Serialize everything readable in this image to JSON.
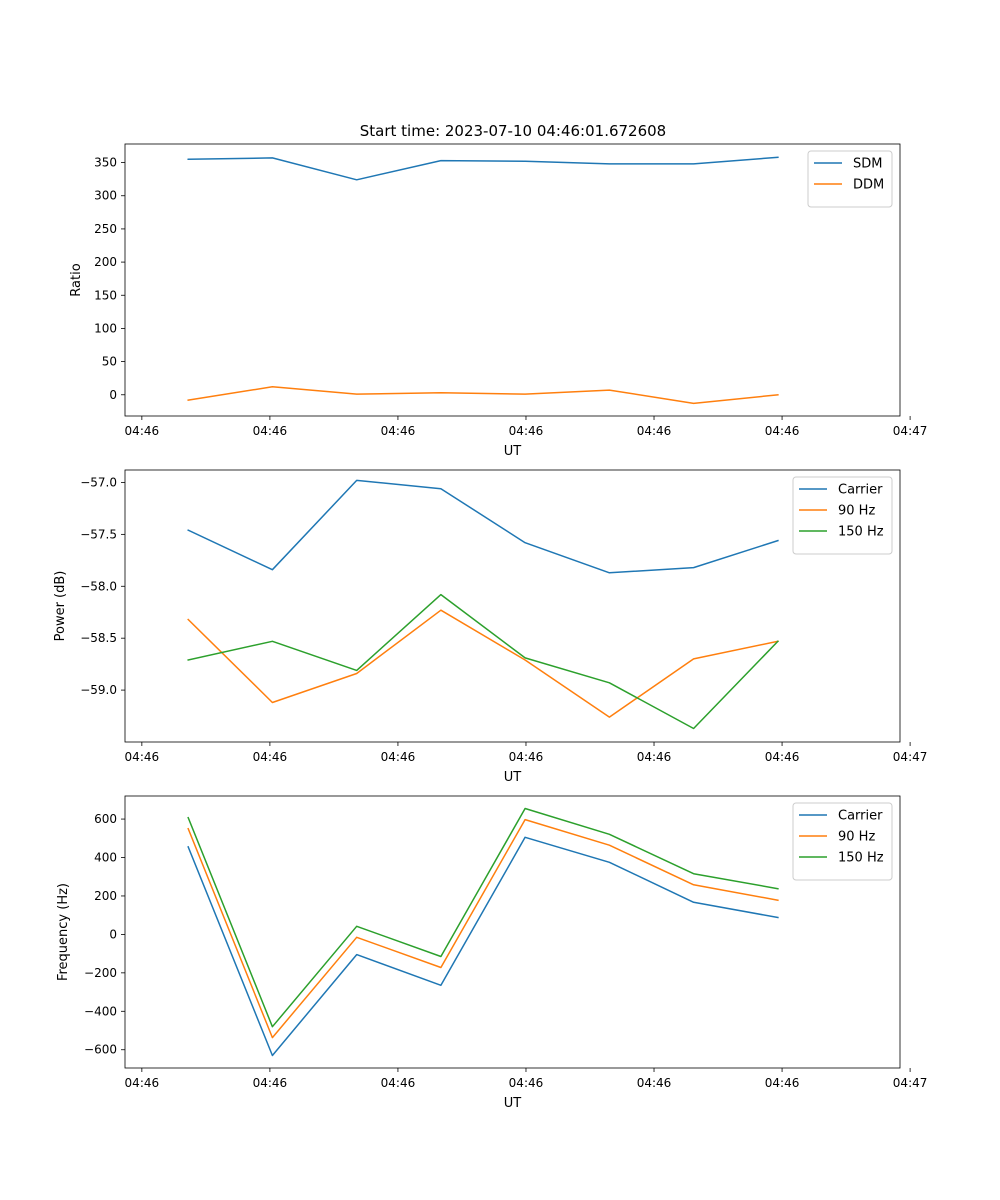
{
  "figure": {
    "title": "Start time: 2023-07-10 04:46:01.672608"
  },
  "colors": {
    "blue": "#1f77b4",
    "orange": "#ff7f0e",
    "green": "#2ca02c"
  },
  "chart_data": [
    {
      "type": "line",
      "title": "Start time: 2023-07-10 04:46:01.672608",
      "xlabel": "UT",
      "ylabel": "Ratio",
      "x": [
        1,
        2,
        3,
        4,
        5,
        6,
        7,
        8
      ],
      "xlim": [
        0.25,
        9.45
      ],
      "xticks": [
        0.45,
        1.97,
        3.49,
        5.01,
        6.53,
        8.05,
        9.57
      ],
      "xtick_labels": [
        "04:46",
        "04:46",
        "04:46",
        "04:46",
        "04:46",
        "04:46",
        "04:47"
      ],
      "ylim": [
        -32,
        378
      ],
      "yticks": [
        0,
        50,
        100,
        150,
        200,
        250,
        300,
        350
      ],
      "ytick_labels": [
        "0",
        "50",
        "100",
        "150",
        "200",
        "250",
        "300",
        "350"
      ],
      "legend": "top-right",
      "series": [
        {
          "name": "SDM",
          "color": "#1f77b4",
          "values": [
            355,
            357,
            324,
            353,
            352,
            348,
            348,
            358
          ]
        },
        {
          "name": "DDM",
          "color": "#ff7f0e",
          "values": [
            -8,
            12,
            1,
            3,
            1,
            7,
            -13,
            0
          ]
        }
      ]
    },
    {
      "type": "line",
      "title": "",
      "xlabel": "UT",
      "ylabel": "Power (dB)",
      "x": [
        1,
        2,
        3,
        4,
        5,
        6,
        7,
        8
      ],
      "xlim": [
        0.25,
        9.45
      ],
      "xticks": [
        0.45,
        1.97,
        3.49,
        5.01,
        6.53,
        8.05,
        9.57
      ],
      "xtick_labels": [
        "04:46",
        "04:46",
        "04:46",
        "04:46",
        "04:46",
        "04:46",
        "04:47"
      ],
      "ylim": [
        -59.5,
        -56.88
      ],
      "yticks": [
        -59.0,
        -58.5,
        -58.0,
        -57.5,
        -57.0
      ],
      "ytick_labels": [
        "−59.0",
        "−58.5",
        "−58.0",
        "−57.5",
        "−57.0"
      ],
      "legend": "top-right",
      "series": [
        {
          "name": "Carrier",
          "color": "#1f77b4",
          "values": [
            -57.46,
            -57.84,
            -56.98,
            -57.06,
            -57.58,
            -57.87,
            -57.82,
            -57.56
          ]
        },
        {
          "name": "90 Hz",
          "color": "#ff7f0e",
          "values": [
            -58.32,
            -59.12,
            -58.84,
            -58.23,
            -58.71,
            -59.26,
            -58.7,
            -58.53
          ]
        },
        {
          "name": "150 Hz",
          "color": "#2ca02c",
          "values": [
            -58.71,
            -58.53,
            -58.81,
            -58.08,
            -58.69,
            -58.93,
            -59.37,
            -58.53
          ]
        }
      ]
    },
    {
      "type": "line",
      "title": "",
      "xlabel": "UT",
      "ylabel": "Frequency (Hz)",
      "x": [
        1,
        2,
        3,
        4,
        5,
        6,
        7,
        8
      ],
      "xlim": [
        0.25,
        9.45
      ],
      "xticks": [
        0.45,
        1.97,
        3.49,
        5.01,
        6.53,
        8.05,
        9.57
      ],
      "xtick_labels": [
        "04:46",
        "04:46",
        "04:46",
        "04:46",
        "04:46",
        "04:46",
        "04:47"
      ],
      "ylim": [
        -695,
        720
      ],
      "yticks": [
        -600,
        -400,
        -200,
        0,
        200,
        400,
        600
      ],
      "ytick_labels": [
        "−600",
        "−400",
        "−200",
        "0",
        "200",
        "400",
        "600"
      ],
      "legend": "top-right",
      "series": [
        {
          "name": "Carrier",
          "color": "#1f77b4",
          "values": [
            455,
            -630,
            -105,
            -265,
            505,
            375,
            167,
            88
          ]
        },
        {
          "name": "90 Hz",
          "color": "#ff7f0e",
          "values": [
            550,
            -537,
            -15,
            -172,
            597,
            464,
            258,
            178
          ]
        },
        {
          "name": "150 Hz",
          "color": "#2ca02c",
          "values": [
            607,
            -480,
            42,
            -115,
            655,
            521,
            316,
            238
          ]
        }
      ]
    }
  ]
}
